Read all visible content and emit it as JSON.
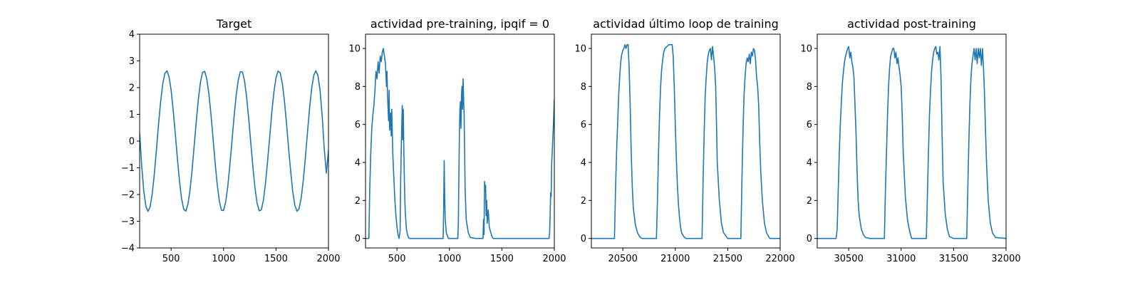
{
  "chart_data": [
    {
      "type": "line",
      "title": "Target",
      "xlim": [
        200,
        2000
      ],
      "ylim": [
        -4,
        4
      ],
      "xticks": [
        500,
        1000,
        1500,
        2000
      ],
      "yticks": [
        -4,
        -3,
        -2,
        -1,
        0,
        1,
        2,
        3,
        4
      ],
      "series": [
        {
          "color": "#1f77b4",
          "x": [
            200,
            220,
            240,
            260,
            280,
            300,
            320,
            340,
            360,
            380,
            400,
            420,
            440,
            460,
            480,
            500,
            520,
            540,
            560,
            580,
            600,
            620,
            640,
            660,
            680,
            700,
            720,
            740,
            760,
            780,
            800,
            820,
            840,
            860,
            880,
            900,
            920,
            940,
            960,
            980,
            1000,
            1020,
            1040,
            1060,
            1080,
            1100,
            1120,
            1140,
            1160,
            1180,
            1200,
            1220,
            1240,
            1260,
            1280,
            1300,
            1320,
            1340,
            1360,
            1380,
            1400,
            1420,
            1440,
            1460,
            1480,
            1500,
            1520,
            1540,
            1560,
            1580,
            1600,
            1620,
            1640,
            1660,
            1680,
            1700,
            1720,
            1740,
            1760,
            1780,
            1800,
            1820,
            1840,
            1860,
            1880,
            1900,
            1920,
            1940,
            1960,
            1980,
            2000
          ],
          "y": [
            0.3,
            -0.95,
            -1.9,
            -2.45,
            -2.63,
            -2.46,
            -1.97,
            -1.23,
            -0.33,
            0.62,
            1.47,
            2.13,
            2.53,
            2.63,
            2.41,
            1.91,
            1.14,
            0.27,
            -0.66,
            -1.51,
            -2.16,
            -2.55,
            -2.62,
            -2.37,
            -1.84,
            -1.08,
            -0.16,
            0.74,
            1.57,
            2.21,
            2.57,
            2.61,
            2.33,
            1.77,
            0.99,
            0.09,
            -0.83,
            -1.64,
            -2.25,
            -2.59,
            -2.6,
            -2.28,
            -1.7,
            -0.91,
            0.0,
            0.91,
            1.7,
            2.28,
            2.6,
            2.59,
            2.25,
            1.64,
            0.83,
            -0.09,
            -0.99,
            -1.77,
            -2.33,
            -2.61,
            -2.57,
            -2.21,
            -1.57,
            -0.74,
            0.16,
            1.08,
            1.84,
            2.37,
            2.62,
            2.55,
            2.16,
            1.51,
            0.66,
            -0.27,
            -1.14,
            -1.91,
            -2.41,
            -2.63,
            -2.53,
            -2.13,
            -1.47,
            -0.62,
            0.33,
            1.23,
            1.97,
            2.46,
            2.63,
            2.45,
            1.9,
            0.95,
            -0.3,
            -1.2,
            -0.35
          ]
        }
      ]
    },
    {
      "type": "line",
      "title": "actividad pre-training, ipqif = 0",
      "xlim": [
        200,
        2000
      ],
      "ylim": [
        -0.5,
        10.75
      ],
      "xticks": [
        500,
        1000,
        1500,
        2000
      ],
      "yticks": [
        0,
        2,
        4,
        6,
        8,
        10
      ],
      "series": [
        {
          "color": "#1f77b4",
          "x": [
            200,
            230,
            232,
            240,
            250,
            260,
            270,
            280,
            290,
            300,
            310,
            320,
            330,
            340,
            350,
            360,
            370,
            380,
            390,
            400,
            405,
            410,
            420,
            425,
            430,
            440,
            445,
            450,
            460,
            470,
            480,
            490,
            500,
            510,
            520,
            530,
            535,
            540,
            545,
            550,
            555,
            560,
            565,
            570,
            575,
            580,
            590,
            600,
            610,
            620,
            640,
            660,
            700,
            800,
            900,
            940,
            945,
            950,
            955,
            960,
            970,
            990,
            1000,
            1030,
            1060,
            1080,
            1085,
            1090,
            1095,
            1100,
            1105,
            1110,
            1115,
            1120,
            1125,
            1130,
            1135,
            1140,
            1145,
            1150,
            1160,
            1180,
            1200,
            1250,
            1300,
            1320,
            1325,
            1330,
            1335,
            1340,
            1345,
            1350,
            1355,
            1360,
            1370,
            1380,
            1390,
            1400,
            1410,
            1420,
            1440,
            1460,
            1500,
            1600,
            1700,
            1800,
            1900,
            1950,
            1955,
            1960,
            1965,
            1970,
            1975,
            1980,
            1985,
            1990,
            1995,
            2000
          ],
          "y": [
            0,
            0,
            0,
            2.5,
            4.5,
            5.8,
            6.5,
            7,
            7.8,
            8.8,
            8.4,
            9.3,
            8.7,
            9.6,
            9.3,
            9.8,
            10,
            9.6,
            9.2,
            8,
            8.8,
            7.5,
            6.2,
            7.8,
            5.7,
            6.6,
            5.4,
            6.8,
            4.5,
            3.2,
            2,
            1.2,
            0.6,
            0.2,
            0,
            0.4,
            3,
            4.5,
            5.8,
            7,
            5.2,
            6.8,
            4.8,
            3.2,
            2,
            1.3,
            0.5,
            0.2,
            0.05,
            0,
            0,
            0,
            0,
            0,
            0,
            0,
            1.5,
            4.1,
            2.2,
            1,
            0.3,
            0,
            0,
            0,
            0,
            0,
            0.8,
            3.2,
            5.5,
            6.8,
            7.2,
            5.8,
            7.5,
            8,
            6.8,
            8.4,
            7.5,
            6.5,
            4.5,
            2.5,
            1,
            0.3,
            0.05,
            0,
            0,
            0,
            1,
            0.2,
            3,
            2.5,
            2.8,
            1.2,
            2,
            0.8,
            1.5,
            0.6,
            0.4,
            0.2,
            0.05,
            0,
            0,
            0,
            0,
            0,
            0,
            0,
            0,
            0,
            0.3,
            1.2,
            2.4,
            2.2,
            4,
            4.5,
            5.2,
            5.8,
            6.5,
            7.3
          ]
        }
      ]
    },
    {
      "type": "line",
      "title": "actividad último loop de training",
      "xlim": [
        20200,
        22000
      ],
      "ylim": [
        -0.5,
        10.75
      ],
      "xticks": [
        20500,
        21000,
        21500,
        22000
      ],
      "yticks": [
        0,
        2,
        4,
        6,
        8,
        10
      ],
      "series": [
        {
          "color": "#1f77b4",
          "x": [
            20200,
            20300,
            20400,
            20420,
            20430,
            20440,
            20450,
            20460,
            20470,
            20480,
            20490,
            20500,
            20510,
            20520,
            20530,
            20540,
            20550,
            20560,
            20570,
            20580,
            20590,
            20600,
            20620,
            20640,
            20660,
            20680,
            20700,
            20800,
            20820,
            20830,
            20840,
            20850,
            20860,
            20870,
            20880,
            20890,
            20900,
            20920,
            20940,
            20960,
            20970,
            20980,
            20990,
            21000,
            21010,
            21020,
            21030,
            21040,
            21050,
            21060,
            21080,
            21100,
            21200,
            21250,
            21255,
            21265,
            21275,
            21285,
            21295,
            21305,
            21315,
            21325,
            21335,
            21345,
            21355,
            21365,
            21375,
            21385,
            21395,
            21400,
            21420,
            21440,
            21460,
            21500,
            21600,
            21625,
            21635,
            21645,
            21655,
            21665,
            21675,
            21685,
            21695,
            21705,
            21715,
            21725,
            21735,
            21745,
            21755,
            21765,
            21775,
            21785,
            21795,
            21805,
            21815,
            21830,
            21850,
            21870,
            21900,
            22000
          ],
          "y": [
            0,
            0,
            0,
            0,
            2.5,
            4.5,
            6,
            7.5,
            8.5,
            9.3,
            9.7,
            9.9,
            10,
            10.2,
            10,
            10.2,
            10.2,
            9,
            7,
            4.5,
            2.7,
            1.6,
            0.7,
            0.3,
            0.1,
            0,
            0,
            0,
            0,
            2,
            4.5,
            6.5,
            8,
            8.9,
            9.4,
            9.8,
            10,
            10.1,
            10.2,
            10.2,
            10.2,
            9.6,
            8,
            6,
            4.2,
            2.8,
            1.8,
            1.1,
            0.6,
            0.3,
            0.1,
            0,
            0,
            0,
            0,
            3,
            5.5,
            7.5,
            8.5,
            9.3,
            9.7,
            9.9,
            10,
            9.4,
            10.1,
            9.6,
            9,
            8,
            5.5,
            4,
            2,
            0.8,
            0.3,
            0,
            0,
            0,
            3,
            5.5,
            7.5,
            8.5,
            9.2,
            9.5,
            9.3,
            9.7,
            9.2,
            9.8,
            9.6,
            10,
            9.9,
            9.4,
            8.5,
            8,
            7,
            5,
            3.5,
            2,
            0.8,
            0.3,
            0,
            0
          ]
        }
      ]
    },
    {
      "type": "line",
      "title": "actividad post-training",
      "xlim": [
        30200,
        32000
      ],
      "ylim": [
        -0.5,
        10.75
      ],
      "xticks": [
        30500,
        31000,
        31500,
        32000
      ],
      "yticks": [
        0,
        2,
        4,
        6,
        8,
        10
      ],
      "series": [
        {
          "color": "#1f77b4",
          "x": [
            30200,
            30300,
            30380,
            30390,
            30400,
            30410,
            30420,
            30430,
            30440,
            30450,
            30460,
            30470,
            30480,
            30490,
            30500,
            30510,
            30520,
            30530,
            30540,
            30550,
            30560,
            30570,
            30580,
            30590,
            30600,
            30620,
            30640,
            30660,
            30700,
            30800,
            30840,
            30850,
            30860,
            30870,
            30880,
            30890,
            30900,
            30910,
            30920,
            30930,
            30940,
            30950,
            30960,
            30970,
            30980,
            30990,
            31000,
            31010,
            31020,
            31040,
            31060,
            31080,
            31100,
            31200,
            31240,
            31250,
            31260,
            31270,
            31280,
            31290,
            31300,
            31310,
            31320,
            31330,
            31340,
            31350,
            31360,
            31370,
            31380,
            31390,
            31400,
            31420,
            31440,
            31460,
            31500,
            31600,
            31625,
            31635,
            31645,
            31655,
            31665,
            31675,
            31685,
            31695,
            31705,
            31715,
            31725,
            31735,
            31745,
            31755,
            31765,
            31775,
            31785,
            31795,
            31805,
            31815,
            31830,
            31850,
            31870,
            31900,
            32000
          ],
          "y": [
            0,
            0,
            0,
            0.5,
            2.5,
            4.5,
            6,
            7.2,
            8.2,
            8.8,
            9.3,
            9.6,
            9.8,
            10,
            10.1,
            9.5,
            9.8,
            9.3,
            9,
            8.5,
            7,
            5.5,
            3.5,
            2,
            1.2,
            0.5,
            0.2,
            0.05,
            0,
            0,
            0,
            2.5,
            4.5,
            6.5,
            8,
            9,
            9.6,
            9.8,
            10,
            10,
            9.5,
            9.8,
            9.2,
            9.5,
            9,
            8.6,
            8,
            6.5,
            4.5,
            2.2,
            1,
            0.4,
            0,
            0,
            0,
            2.2,
            4.5,
            6.5,
            7.8,
            8.8,
            9.4,
            9.8,
            10,
            10.1,
            9.7,
            9.8,
            9.4,
            10.1,
            8.5,
            5.5,
            3,
            1.3,
            0.5,
            0.1,
            0,
            0,
            0,
            2.5,
            5,
            7,
            8.4,
            9.2,
            9.6,
            10,
            9.4,
            10,
            9.2,
            10,
            9.5,
            10,
            9.1,
            10,
            9,
            7.5,
            5.5,
            3.8,
            2,
            0.8,
            0.3,
            0.05,
            0
          ]
        }
      ]
    }
  ]
}
